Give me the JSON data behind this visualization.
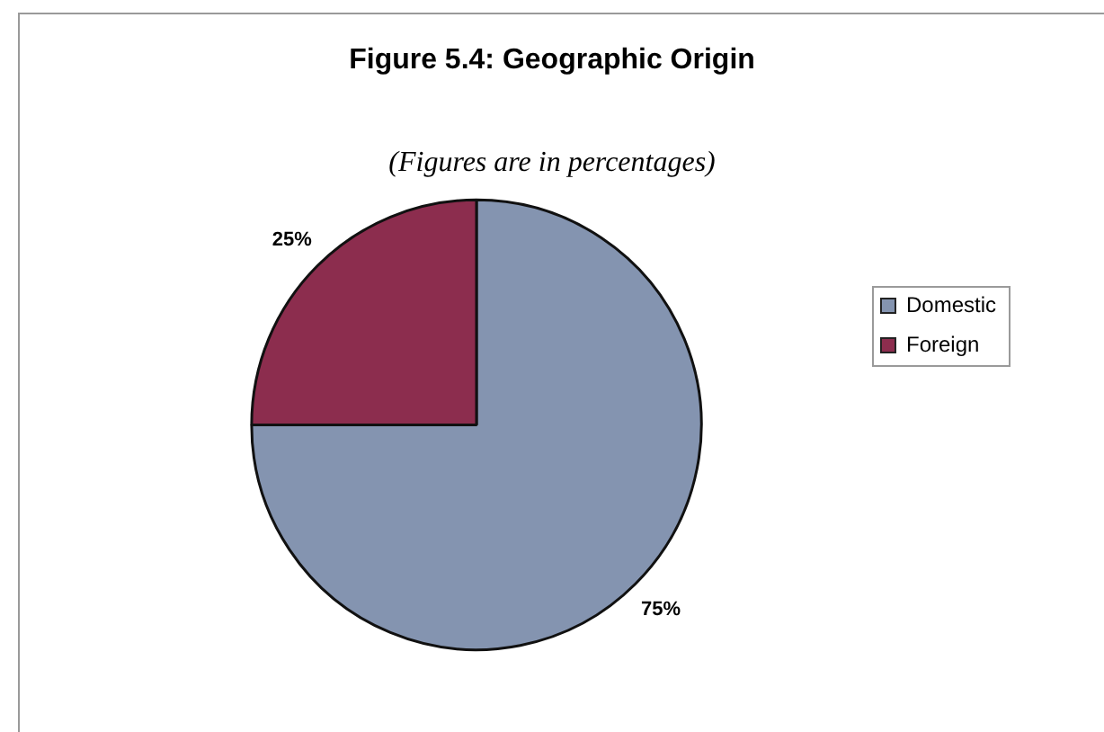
{
  "chart_data": {
    "type": "pie",
    "title": "Figure 5.4: Geographic Origin",
    "subtitle": "(Figures are in percentages)",
    "categories": [
      "Domestic",
      "Foreign"
    ],
    "values": [
      75,
      25
    ],
    "colors": [
      "#8494b0",
      "#8c2d4e"
    ],
    "value_labels": [
      "75%",
      "25%"
    ],
    "legend": "right"
  }
}
